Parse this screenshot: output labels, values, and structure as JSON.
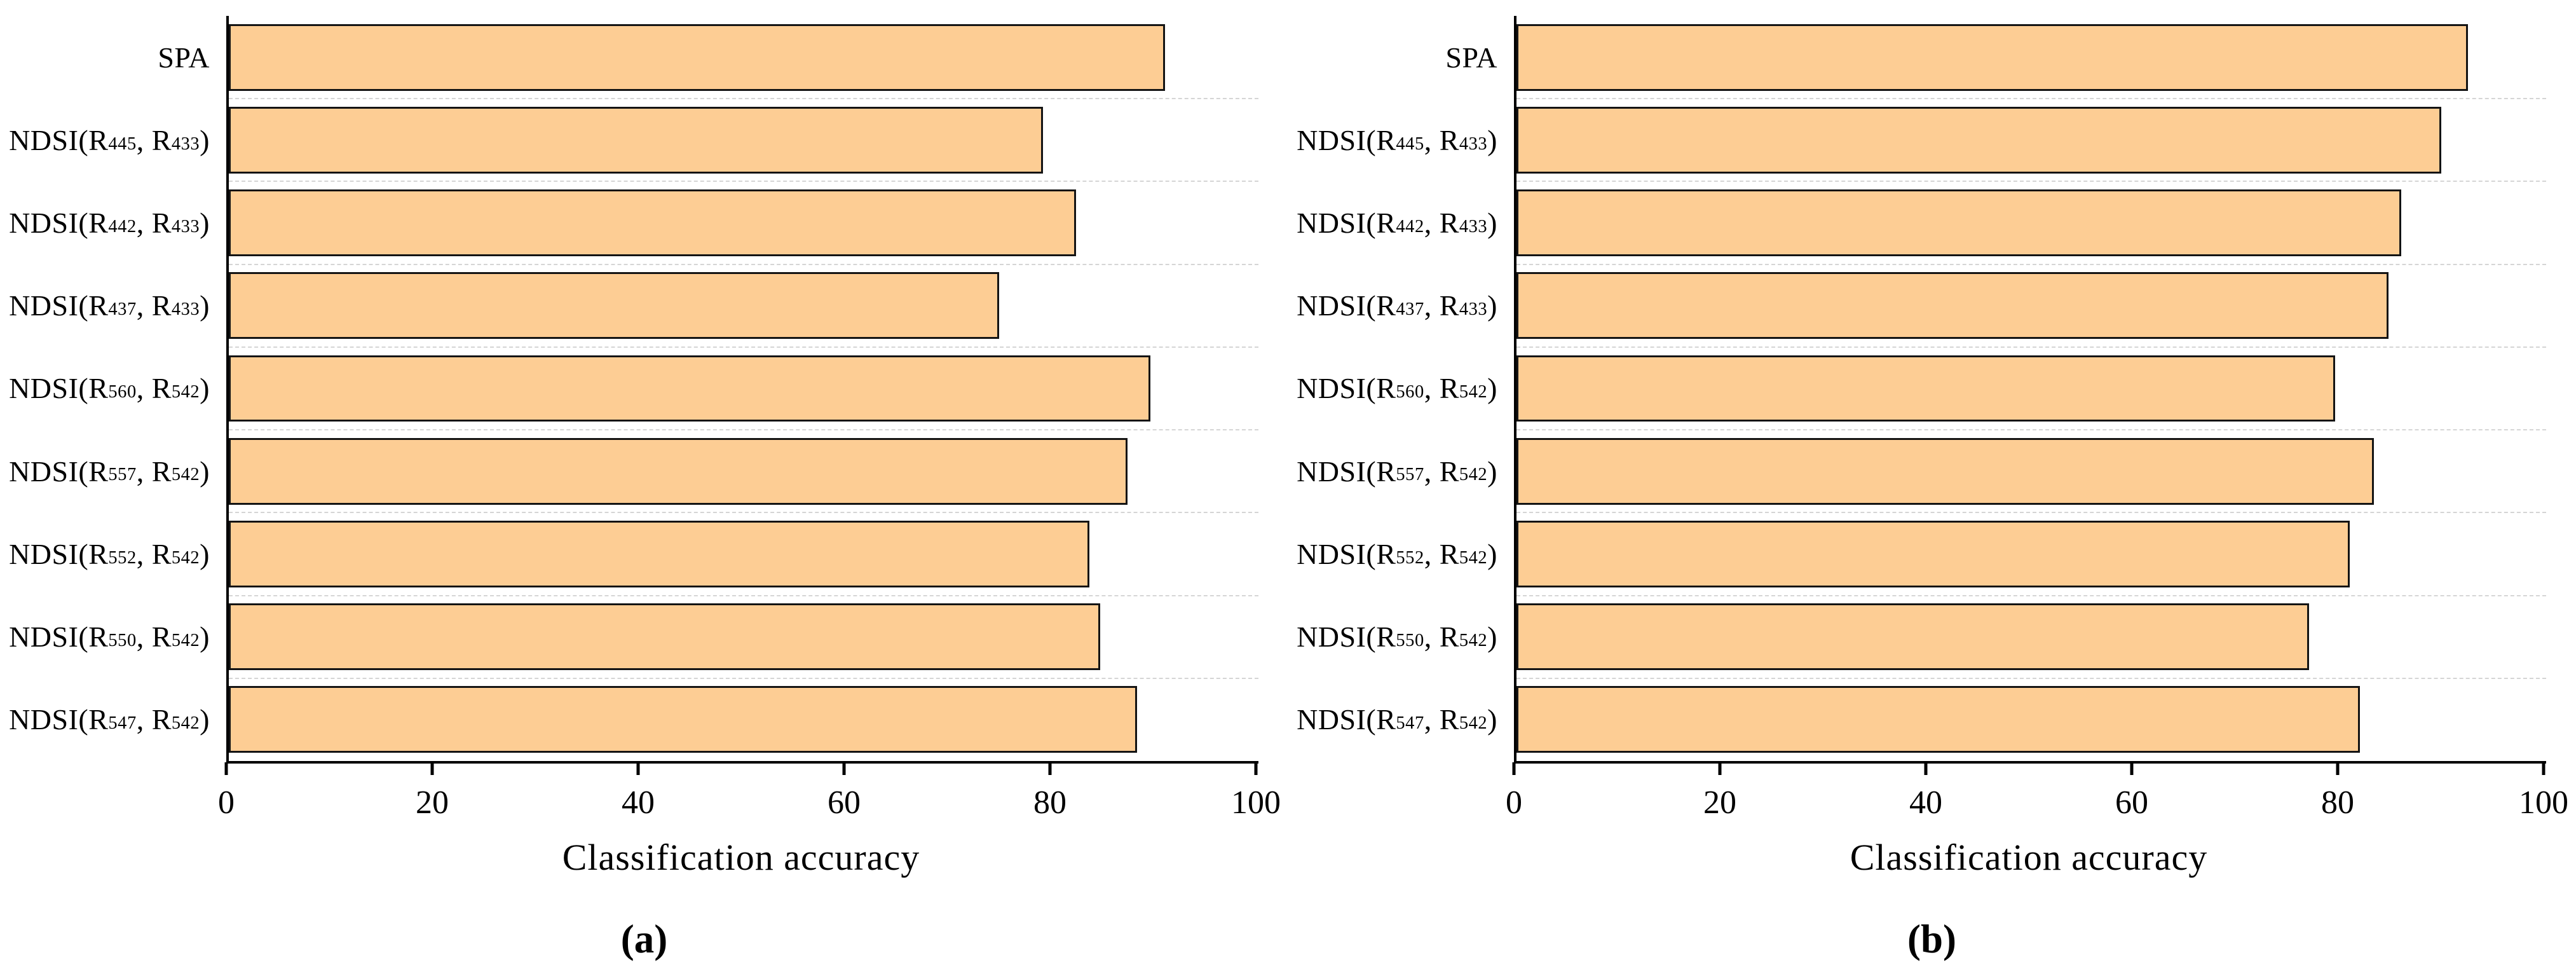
{
  "figure": {
    "background": "#ffffff",
    "bar_fill": "#FDCD94",
    "bar_border": "#141414",
    "gridline_color": "#d5d5d5",
    "axis_color": "#000000"
  },
  "chart_data": [
    {
      "type": "bar",
      "orientation": "horizontal",
      "panel_label": "(a)",
      "xlabel": "Classification accuracy",
      "xlim": [
        0,
        100
      ],
      "xticks": [
        0,
        20,
        40,
        60,
        80,
        100
      ],
      "grid": "dashed horizontal separators between categories",
      "legend": "none",
      "categories": [
        "SPA",
        "NDSI(R_{445}, R_{433})",
        "NDSI(R_{442}, R_{433})",
        "NDSI(R_{437}, R_{433})",
        "NDSI(R_{560}, R_{542})",
        "NDSI(R_{557}, R_{542})",
        "NDSI(R_{552}, R_{542})",
        "NDSI(R_{550}, R_{542})",
        "NDSI(R_{547}, R_{542})"
      ],
      "values": [
        90.9,
        79.1,
        82.3,
        74.8,
        89.5,
        87.3,
        83.6,
        84.6,
        88.2
      ]
    },
    {
      "type": "bar",
      "orientation": "horizontal",
      "panel_label": "(b)",
      "xlabel": "Classification accuracy",
      "xlim": [
        0,
        100
      ],
      "xticks": [
        0,
        20,
        40,
        60,
        80,
        100
      ],
      "grid": "dashed horizontal separators between categories",
      "legend": "none",
      "categories": [
        "SPA",
        "NDSI(R_{445}, R_{433})",
        "NDSI(R_{442}, R_{433})",
        "NDSI(R_{437}, R_{433})",
        "NDSI(R_{560}, R_{542})",
        "NDSI(R_{557}, R_{542})",
        "NDSI(R_{552}, R_{542})",
        "NDSI(R_{550}, R_{542})",
        "NDSI(R_{547}, R_{542})"
      ],
      "values": [
        92.4,
        89.8,
        85.9,
        84.7,
        79.5,
        83.3,
        80.9,
        77.0,
        81.9
      ]
    }
  ]
}
